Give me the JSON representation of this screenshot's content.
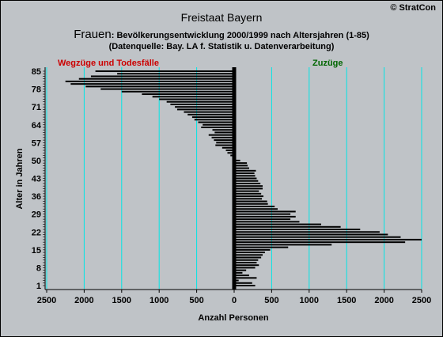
{
  "header": {
    "title": "Freistaat Bayern",
    "subtitle_lead": "Frauen",
    "subtitle_rest": ": Bevölkerungsentwicklung 2000/1999  nach Altersjahren (1-85)",
    "source": "(Datenquelle: Bay. LA f. Statistik u. Datenverarbeitung)",
    "copyright": "© StratCon"
  },
  "colors": {
    "background": "#bfc3c7",
    "bar": "#000000",
    "grid": "#00e5e5",
    "left_label": "#cc0000",
    "right_label": "#006600"
  },
  "chart_data": {
    "type": "bar",
    "orientation": "horizontal",
    "title": "Freistaat Bayern",
    "xlabel": "Anzahl Personen",
    "ylabel": "Alter in Jahren",
    "left_side_label": "Wegzüge und Todesfälle",
    "right_side_label": "Zuzüge",
    "xlim": [
      -2500,
      2500
    ],
    "x_ticks": [
      -2500,
      -2000,
      -1500,
      -1000,
      -500,
      0,
      500,
      1000,
      1500,
      2000,
      2500
    ],
    "x_tick_labels": [
      "2500",
      "2000",
      "1500",
      "1000",
      "500",
      "0",
      "500",
      "1000",
      "1500",
      "2000",
      "2500"
    ],
    "ylim": [
      1,
      85
    ],
    "y_ticks": [
      1,
      8,
      15,
      22,
      29,
      36,
      43,
      50,
      57,
      64,
      71,
      78,
      85
    ],
    "grid": "vertical",
    "ages": [
      1,
      2,
      3,
      4,
      5,
      6,
      7,
      8,
      9,
      10,
      11,
      12,
      13,
      14,
      15,
      16,
      17,
      18,
      19,
      20,
      21,
      22,
      23,
      24,
      25,
      26,
      27,
      28,
      29,
      30,
      31,
      32,
      33,
      34,
      35,
      36,
      37,
      38,
      39,
      40,
      41,
      42,
      43,
      44,
      45,
      46,
      47,
      48,
      49,
      50,
      51,
      52,
      53,
      54,
      55,
      56,
      57,
      58,
      59,
      60,
      61,
      62,
      63,
      64,
      65,
      66,
      67,
      68,
      69,
      70,
      71,
      72,
      73,
      74,
      75,
      76,
      77,
      78,
      79,
      80,
      81,
      82,
      83,
      84,
      85
    ],
    "values": [
      280,
      240,
      60,
      300,
      200,
      110,
      160,
      280,
      330,
      300,
      320,
      360,
      380,
      410,
      480,
      720,
      1300,
      2280,
      2500,
      2220,
      2050,
      1940,
      1680,
      1420,
      1160,
      870,
      750,
      820,
      750,
      820,
      580,
      540,
      450,
      440,
      370,
      390,
      360,
      330,
      380,
      380,
      350,
      320,
      300,
      280,
      270,
      290,
      200,
      180,
      170,
      80,
      -20,
      -50,
      -90,
      -110,
      -160,
      -250,
      -240,
      -270,
      -300,
      -340,
      -260,
      -290,
      -440,
      -420,
      -480,
      -530,
      -560,
      -620,
      -670,
      -760,
      -790,
      -850,
      -900,
      -1000,
      -1090,
      -1230,
      -1500,
      -1780,
      -1980,
      -2180,
      -2250,
      -2070,
      -1910,
      -1560,
      -1850
    ]
  }
}
